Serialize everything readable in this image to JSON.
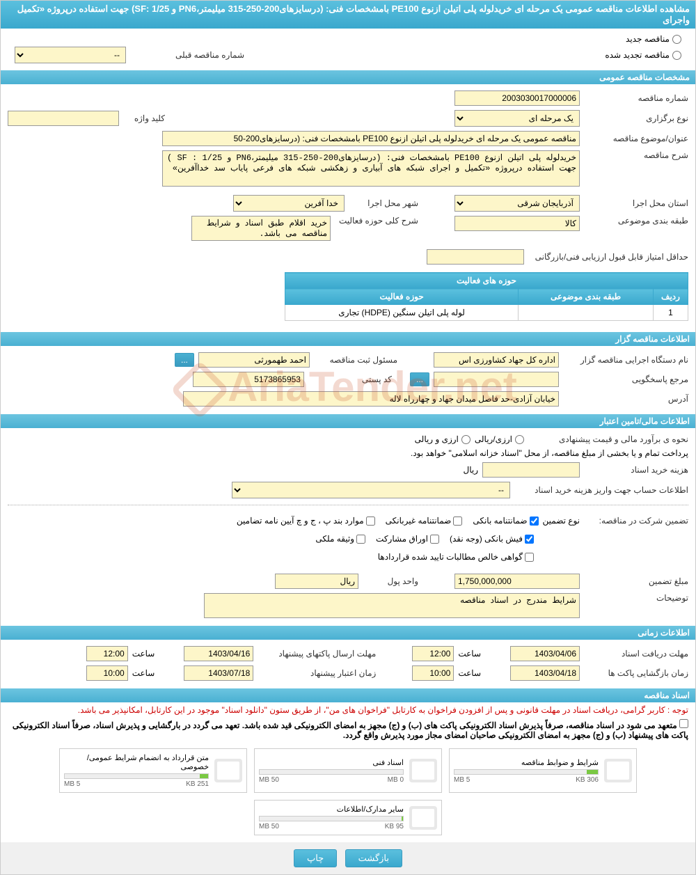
{
  "header": {
    "title": "مشاهده اطلاعات مناقصه عمومی یک مرحله ای خریدلوله پلی اتیلن ازنوع PE100 بامشخصات فنی: (درسایزهای200-250-315 میلیمتر،PN6 و SF: 1/25) جهت استفاده درپروژه «تکمیل واجرای"
  },
  "tender_type": {
    "new_label": "مناقصه جدید",
    "renewed_label": "مناقصه تجدید شده",
    "prev_number_label": "شماره مناقصه قبلی",
    "prev_number_value": "--"
  },
  "sections": {
    "general": "مشخصات مناقصه عمومی",
    "organizer": "اطلاعات مناقصه گزار",
    "financial": "اطلاعات مالی/تامین اعتبار",
    "timing": "اطلاعات زمانی",
    "documents": "اسناد مناقصه"
  },
  "general": {
    "tender_number_label": "شماره مناقصه",
    "tender_number_value": "2003030017000006",
    "holding_type_label": "نوع برگزاری",
    "holding_type_value": "یک مرحله ای",
    "keyword_label": "کلید واژه",
    "keyword_value": "",
    "title_label": "عنوان/موضوع مناقصه",
    "title_value": "مناقصه عمومی یک مرحله ای خریدلوله پلی اتیلن ازنوع PE100 بامشخصات فنی: (درسایزهای200-50",
    "description_label": "شرح مناقصه",
    "description_value": "خریدلوله پلی اتیلن ازنوع PE100 بامشخصات فنی: (درسایزهای200-250-315 میلیمتر،PN6 و SF : 1/25 ) جهت استفاده درپروژه «تکمیل و اجرای شبکه های آبیاری و زهکشی شبکه های فرعی پایاب سد خداآفرین»",
    "province_label": "استان محل اجرا",
    "province_value": "آذربایجان شرقی",
    "city_label": "شهر محل اجرا",
    "city_value": "خدا آفرین",
    "category_label": "طبقه بندی موضوعی",
    "category_value": "کالا",
    "activity_desc_label": "شرح کلی حوزه فعالیت",
    "activity_desc_value": "خرید اقلام طبق اسناد و شرایط مناقصه می باشد.",
    "min_score_label": "حداقل امتیاز قابل قبول ارزیابی فنی/بازرگانی",
    "min_score_value": ""
  },
  "activity_table": {
    "header_title": "حوزه های فعالیت",
    "col_row": "ردیف",
    "col_category": "طبقه بندی موضوعی",
    "col_activity": "حوزه فعالیت",
    "rows": [
      {
        "row": "1",
        "category": "",
        "activity": "لوله پلی اتیلن سنگین (HDPE) تجاری"
      }
    ]
  },
  "organizer": {
    "org_name_label": "نام دستگاه اجرایی مناقصه گزار",
    "org_name_value": "اداره کل جهاد کشاورزی اس",
    "registrar_label": "مسئول ثبت مناقصه",
    "registrar_value": "احمد طهمورثی",
    "response_ref_label": "مرجع پاسخگویی",
    "response_ref_value": "",
    "postal_code_label": "کد پستی",
    "postal_code_value": "5173865953",
    "address_label": "آدرس",
    "address_value": "خیابان آزادی-حد فاصل میدان جهاد و چهارراه لاله",
    "ellipsis": "..."
  },
  "financial": {
    "estimate_label": "نحوه ی برآورد مالی و قیمت پیشنهادی",
    "estimate_option": "ارزی/ریالی",
    "currency_option": "ارزی و ریالی",
    "treasury_note": "پرداخت تمام و یا بخشی از مبلغ مناقصه، از محل \"اسناد خزانه اسلامی\" خواهد بود.",
    "purchase_cost_label": "هزینه خرید اسناد",
    "purchase_cost_value": "",
    "rial_label": "ریال",
    "account_info_label": "اطلاعات حساب جهت واریز هزینه خرید اسناد",
    "account_info_value": "--",
    "guarantee_label": "تضمین شرکت در مناقصه:",
    "guarantee_type_label": "نوع تضمین",
    "guarantee_bank": "ضمانتنامه بانکی",
    "guarantee_nonbank": "ضمانتنامه غیربانکی",
    "guarantee_cases": "موارد بند پ ، ج و چ آیین نامه تضامین",
    "guarantee_cash": "فیش بانکی (وجه نقد)",
    "guarantee_stocks": "اوراق مشارکت",
    "guarantee_property": "وثیقه ملکی",
    "guarantee_cert": "گواهی خالص مطالبات تایید شده قراردادها",
    "guarantee_amount_label": "مبلغ تضمین",
    "guarantee_amount_value": "1,750,000,000",
    "currency_unit_label": "واحد پول",
    "currency_unit_value": "ریال",
    "notes_label": "توضیحات",
    "notes_value": "شرایط مندرج در اسناد مناقصه"
  },
  "timing": {
    "receive_deadline_label": "مهلت دریافت اسناد",
    "receive_deadline_date": "1403/04/06",
    "time_label": "ساعت",
    "receive_deadline_time": "12:00",
    "send_deadline_label": "مهلت ارسال پاکتهای پیشنهاد",
    "send_deadline_date": "1403/04/16",
    "send_deadline_time": "12:00",
    "open_time_label": "زمان بازگشایی پاکت ها",
    "open_date": "1403/04/18",
    "open_time": "10:00",
    "validity_label": "زمان اعتبار پیشنهاد",
    "validity_date": "1403/07/18",
    "validity_time": "10:00"
  },
  "documents": {
    "notice1": "توجه : کاربر گرامی، دریافت اسناد در مهلت قانونی و پس از افزودن فراخوان به کارتابل \"فراخوان های من\"، از طریق ستون \"دانلود اسناد\" موجود در این کارتابل، امکانپذیر می باشد.",
    "notice2": "متعهد می شود در اسناد مناقصه، صرفاً پذیرش اسناد الکترونیکی پاکت های (ب) و (ج) مجهز به امضای الکترونیکی قید شده باشد. تعهد می گردد در بارگشایی و پذیرش اسناد، صرفاً اسناد الکترونیکی پاکت های پیشنهاد (ب) و (ج) مجهز به امضای الکترونیکی صاحبان امضای مجاز مورد پذیرش واقع گردد.",
    "files": [
      {
        "name": "شرایط و ضوابط مناقصه",
        "size": "306 KB",
        "max": "5 MB",
        "fill": 8
      },
      {
        "name": "اسناد فنی",
        "size": "0 MB",
        "max": "50 MB",
        "fill": 0
      },
      {
        "name": "متن قرارداد به انضمام شرایط عمومی/خصوصی",
        "size": "251 KB",
        "max": "5 MB",
        "fill": 6
      },
      {
        "name": "سایر مدارک/اطلاعات",
        "size": "95 KB",
        "max": "50 MB",
        "fill": 1
      }
    ]
  },
  "buttons": {
    "back": "بازگشت",
    "print": "چاپ"
  },
  "watermark": "AriaTender.net",
  "colors": {
    "header_bg": "#4ab0d2",
    "input_bg": "#fdf6c9",
    "notice_red": "#c00"
  }
}
